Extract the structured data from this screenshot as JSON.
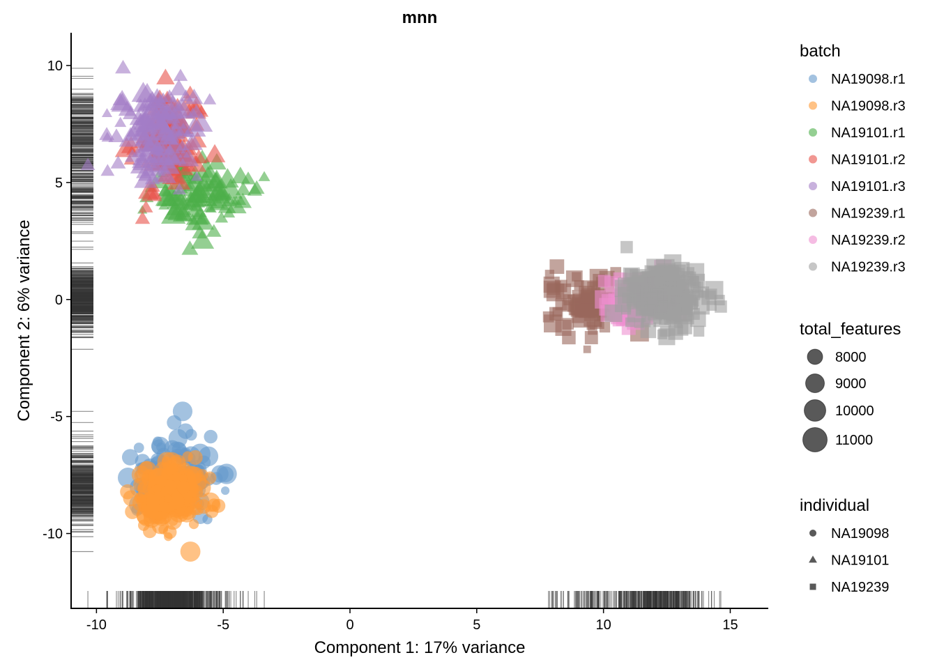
{
  "chart_data": {
    "type": "scatter",
    "title": "mnn",
    "xlabel": "Component 1: 17% variance",
    "ylabel": "Component 2: 6% variance",
    "xlim": [
      -11,
      16.5
    ],
    "ylim": [
      -13.2,
      11.4
    ],
    "xticks": [
      -10,
      -5,
      0,
      5,
      10,
      15
    ],
    "yticks": [
      -10,
      -5,
      0,
      5,
      10
    ],
    "rug": true,
    "grid": false,
    "legend_position": "right",
    "legends": {
      "batch": {
        "title": "batch",
        "entries": [
          {
            "label": "NA19098.r1",
            "color": "#6699CC"
          },
          {
            "label": "NA19098.r3",
            "color": "#FF9933"
          },
          {
            "label": "NA19101.r1",
            "color": "#4DAF4A"
          },
          {
            "label": "NA19101.r2",
            "color": "#E8524A"
          },
          {
            "label": "NA19101.r3",
            "color": "#A47DC7"
          },
          {
            "label": "NA19239.r1",
            "color": "#99685B"
          },
          {
            "label": "NA19239.r2",
            "color": "#EE90D0"
          },
          {
            "label": "NA19239.r3",
            "color": "#A0A0A0"
          }
        ]
      },
      "size": {
        "title": "total_features",
        "entries": [
          {
            "label": "8000",
            "value": 8000
          },
          {
            "label": "9000",
            "value": 9000
          },
          {
            "label": "10000",
            "value": 10000
          },
          {
            "label": "11000",
            "value": 11000
          }
        ]
      },
      "shape": {
        "title": "individual",
        "entries": [
          {
            "label": "NA19098",
            "shape": "circle"
          },
          {
            "label": "NA19101",
            "shape": "triangle"
          },
          {
            "label": "NA19239",
            "shape": "square"
          }
        ]
      }
    },
    "clusters": [
      {
        "series": "NA19098.r1",
        "shape": "circle",
        "color": "#6699CC",
        "center": [
          -6.9,
          -7.6
        ],
        "spread": [
          1.1,
          1.2
        ],
        "count": 130
      },
      {
        "series": "NA19098.r3",
        "shape": "circle",
        "color": "#FF9933",
        "center": [
          -7.2,
          -8.3
        ],
        "spread": [
          0.9,
          0.9
        ],
        "count": 200
      },
      {
        "series": "NA19101.r1",
        "shape": "triangle",
        "color": "#4DAF4A",
        "center": [
          -6.0,
          4.5
        ],
        "spread": [
          1.2,
          1.0
        ],
        "count": 100
      },
      {
        "series": "NA19101.r2",
        "shape": "triangle",
        "color": "#E8524A",
        "center": [
          -7.3,
          6.6
        ],
        "spread": [
          1.0,
          1.4
        ],
        "count": 110
      },
      {
        "series": "NA19101.r3",
        "shape": "triangle",
        "color": "#A47DC7",
        "center": [
          -7.6,
          7.2
        ],
        "spread": [
          1.1,
          1.3
        ],
        "count": 140
      },
      {
        "series": "NA19239.r1",
        "shape": "square",
        "color": "#99685B",
        "center": [
          9.3,
          -0.1
        ],
        "spread": [
          1.0,
          0.8
        ],
        "count": 80
      },
      {
        "series": "NA19239.r2",
        "shape": "square",
        "color": "#EE90D0",
        "center": [
          11.3,
          0.0
        ],
        "spread": [
          1.0,
          0.7
        ],
        "count": 90
      },
      {
        "series": "NA19239.r3",
        "shape": "square",
        "color": "#A0A0A0",
        "center": [
          12.4,
          0.1
        ],
        "spread": [
          1.0,
          0.8
        ],
        "count": 230
      }
    ],
    "point_alpha": 0.6
  }
}
